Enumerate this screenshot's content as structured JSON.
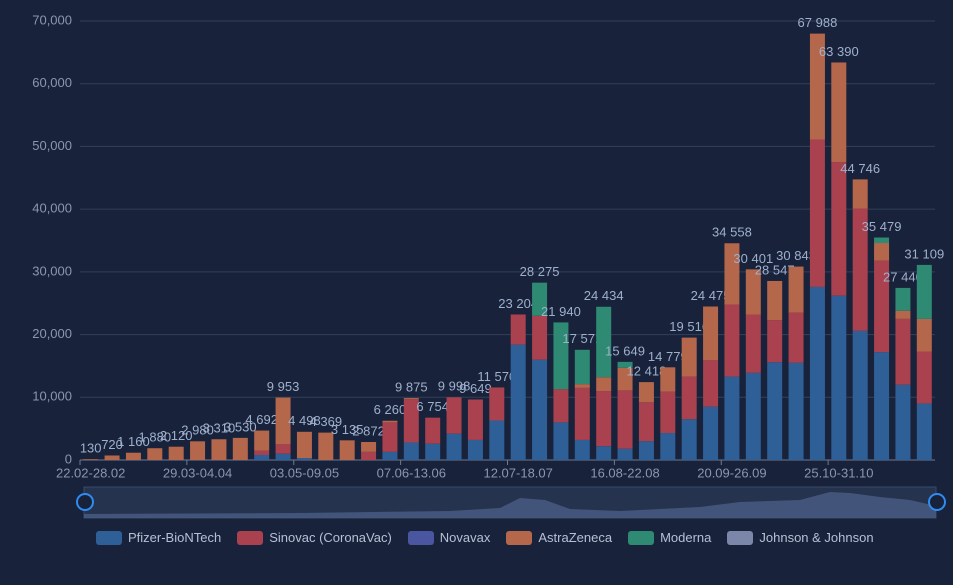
{
  "chart_data": {
    "type": "bar",
    "stacked": true,
    "categories": [
      "22.02-28.02",
      null,
      null,
      null,
      null,
      "29.03-04.04",
      null,
      null,
      null,
      null,
      "03.05-09.05",
      null,
      null,
      null,
      null,
      "07.06-13.06",
      null,
      null,
      null,
      null,
      "12.07-18.07",
      null,
      null,
      null,
      null,
      "16.08-22.08",
      null,
      null,
      null,
      null,
      "20.09-26.09",
      null,
      null,
      null,
      null,
      "25.10-31.10",
      null,
      null,
      null,
      null
    ],
    "series": [
      {
        "name": "Pfizer-BioNTech",
        "color": "#2f5f97",
        "values": [
          0,
          0,
          0,
          0,
          0,
          0,
          0,
          0,
          800,
          1000,
          300,
          0,
          0,
          0,
          1300,
          2800,
          2600,
          4200,
          3200,
          6300,
          18400,
          16000,
          6000,
          3200,
          2200,
          1800,
          3000,
          4300,
          6500,
          8500,
          13300,
          13900,
          15600,
          15500,
          27600,
          26200,
          20600,
          17200,
          12000,
          9000
        ]
      },
      {
        "name": "Sinovac (CoronaVac)",
        "color": "#a9414e",
        "values": [
          0,
          0,
          0,
          0,
          0,
          0,
          0,
          0,
          700,
          1500,
          0,
          0,
          0,
          1300,
          4700,
          6900,
          4154,
          5798,
          6449,
          5270,
          4804,
          7000,
          5300,
          8300,
          8800,
          9300,
          6200,
          6600,
          6800,
          7400,
          11500,
          9300,
          6700,
          8000,
          23500,
          21300,
          19500,
          14600,
          10500,
          8300
        ]
      },
      {
        "name": "Novavax",
        "color": "#4a56a0",
        "values": [
          0,
          0,
          0,
          0,
          0,
          0,
          0,
          0,
          0,
          0,
          0,
          0,
          0,
          0,
          0,
          0,
          0,
          0,
          0,
          0,
          0,
          0,
          0,
          0,
          0,
          0,
          0,
          0,
          0,
          0,
          0,
          0,
          0,
          0,
          0,
          0,
          0,
          0,
          0,
          0
        ]
      },
      {
        "name": "AstraZeneca",
        "color": "#b4674b",
        "values": [
          130,
          720,
          1160,
          1880,
          2120,
          2980,
          3310,
          3530,
          3192,
          7453,
          4198,
          4369,
          3135,
          1572,
          260,
          175,
          0,
          0,
          0,
          0,
          0,
          0,
          0,
          600,
          2200,
          3600,
          3218,
          3879,
          6216,
          8575,
          9758,
          7201,
          6247,
          7343,
          16888,
          15890,
          4646,
          2800,
          1300,
          5200
        ]
      },
      {
        "name": "Moderna",
        "color": "#2e8a72",
        "values": [
          0,
          0,
          0,
          0,
          0,
          0,
          0,
          0,
          0,
          0,
          0,
          0,
          0,
          0,
          0,
          0,
          0,
          0,
          0,
          0,
          0,
          5275,
          10640,
          5471,
          11234,
          949,
          0,
          0,
          0,
          0,
          0,
          0,
          0,
          0,
          0,
          0,
          0,
          879,
          3640,
          8609
        ]
      },
      {
        "name": "Johnson & Johnson",
        "color": "#7b86a8",
        "values": [
          0,
          0,
          0,
          0,
          0,
          0,
          0,
          0,
          0,
          0,
          0,
          0,
          0,
          0,
          0,
          0,
          0,
          0,
          0,
          0,
          0,
          0,
          0,
          0,
          0,
          0,
          0,
          0,
          0,
          0,
          0,
          0,
          0,
          0,
          0,
          0,
          0,
          0,
          0,
          0
        ]
      }
    ],
    "totals": [
      130,
      720,
      1160,
      1880,
      2120,
      2980,
      3310,
      3530,
      4692,
      9953,
      4498,
      4369,
      3135,
      2872,
      6260,
      9875,
      6754,
      9998,
      9649,
      11570,
      23204,
      28275,
      21940,
      17571,
      24434,
      15649,
      12418,
      14779,
      19516,
      24475,
      34558,
      30401,
      28547,
      30843,
      67988,
      63390,
      44746,
      35479,
      27440,
      31109
    ],
    "total_labels": [
      "130",
      "720",
      "1 160",
      "1 880",
      "2 120",
      "2 980",
      "3 310",
      "3 530",
      "4 692",
      "9 953",
      "4 498",
      "4 369",
      "3 135",
      "2 872",
      "6 260",
      "9 875",
      "6 754",
      "9 998",
      "9 649",
      "11 570",
      "23 204",
      "28 275",
      "21 940",
      "17 571",
      "24 434",
      "15 649",
      "12 418",
      "14 779",
      "19 516",
      "24 475",
      "34 558",
      "30 401",
      "28 547",
      "30 843",
      "67 988",
      "63 390",
      "44 746",
      "35 479",
      "27 440",
      "31 109"
    ],
    "ylim": [
      0,
      70000
    ],
    "yticks": [
      0,
      {
        "value": 10000,
        "label": "10,000"
      },
      {
        "value": 20000,
        "label": "20,000"
      },
      {
        "value": 30000,
        "label": "30,000"
      },
      {
        "value": 40000,
        "label": "40,000"
      },
      {
        "value": 50000,
        "label": "50,000"
      },
      {
        "value": 60000,
        "label": "60,000"
      },
      {
        "value": 70000,
        "label": "70,000"
      }
    ],
    "grid": true
  }
}
